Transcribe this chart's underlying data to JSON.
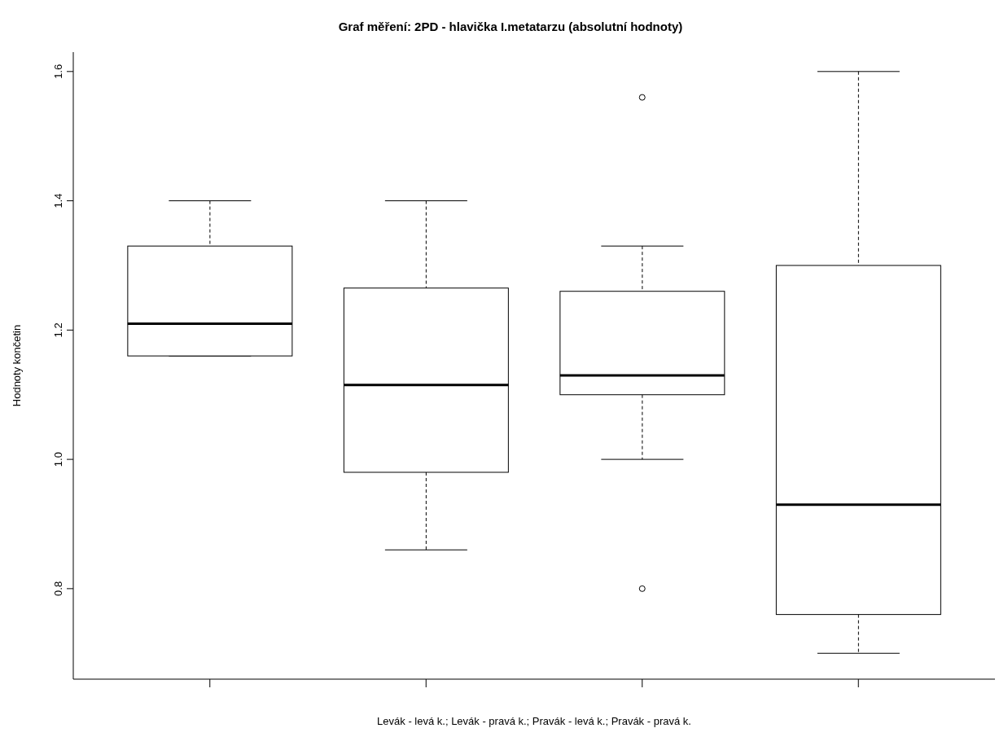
{
  "chart_data": {
    "type": "box",
    "title": "Graf měření: 2PD - hlavička I.metatarzu (absolutní hodnoty)",
    "xlabel": "Levák - levá k.; Levák - pravá k.; Pravák - levá k.; Pravák - pravá k.",
    "ylabel": "Hodnoty končetin",
    "categories": [
      null,
      null,
      null,
      null
    ],
    "boxes": [
      {
        "low": 1.16,
        "q1": 1.16,
        "median": 1.21,
        "q3": 1.33,
        "high": 1.4
      },
      {
        "low": 0.86,
        "q1": 0.98,
        "median": 1.115,
        "q3": 1.265,
        "high": 1.4
      },
      {
        "low": 1.0,
        "q1": 1.1,
        "median": 1.13,
        "q3": 1.26,
        "high": 1.33,
        "outliers": [
          1.56,
          0.8
        ]
      },
      {
        "low": 0.7,
        "q1": 0.76,
        "median": 0.93,
        "q3": 1.3,
        "high": 1.6
      }
    ],
    "ylim": [
      0.66,
      1.63
    ],
    "yticks": [
      0.8,
      {
        "value": 1,
        "label": "1.0"
      },
      1.2,
      1.4,
      1.6
    ],
    "grid": false,
    "legend": false
  }
}
